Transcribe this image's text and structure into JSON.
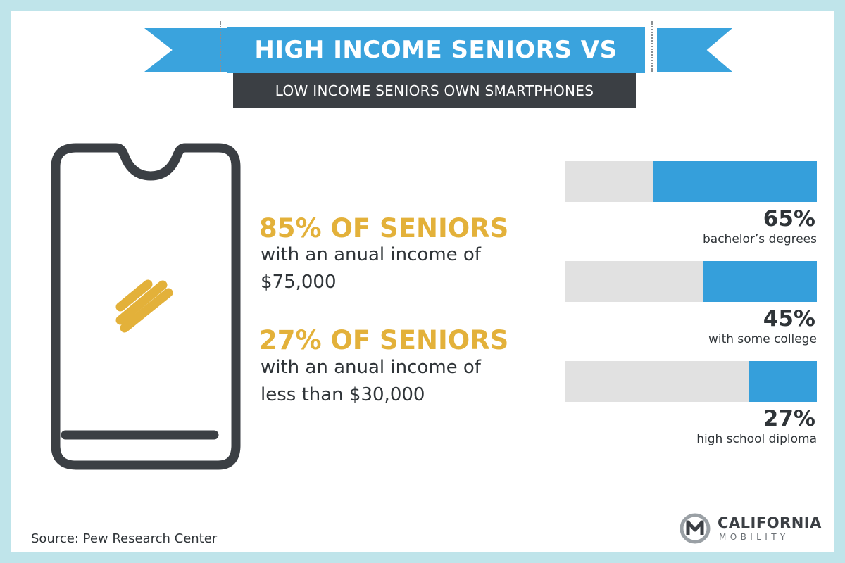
{
  "title": {
    "main": "HIGH INCOME SENIORS VS",
    "sub": "LOW INCOME SENIORS OWN SMARTPHONES"
  },
  "stats": [
    {
      "headline": "85% OF SENIORS",
      "line1": "with an anual income of",
      "line2": "$75,000"
    },
    {
      "headline": "27% OF SENIORS",
      "line1": "with an anual income of",
      "line2": "less than $30,000"
    }
  ],
  "chart_data": {
    "type": "bar",
    "orientation": "horizontal",
    "categories": [
      "bachelor’s degrees",
      "with some college",
      "high school diploma"
    ],
    "values": [
      65,
      45,
      27
    ],
    "value_labels": [
      "65%",
      "45%",
      "27%"
    ],
    "max": 100,
    "fill_color": "#359fdb",
    "track_color": "#e1e1e1"
  },
  "source": "Source: Pew Research Center",
  "logo": {
    "name": "CALIFORNIA",
    "sub": "MOBILITY"
  },
  "icons": [
    "smartphone-icon",
    "logo-mark-icon"
  ],
  "colors": {
    "accent_blue": "#3aa3dd",
    "dark": "#3b3f44",
    "gold": "#e3b13a",
    "frame": "#bfe4ea"
  }
}
